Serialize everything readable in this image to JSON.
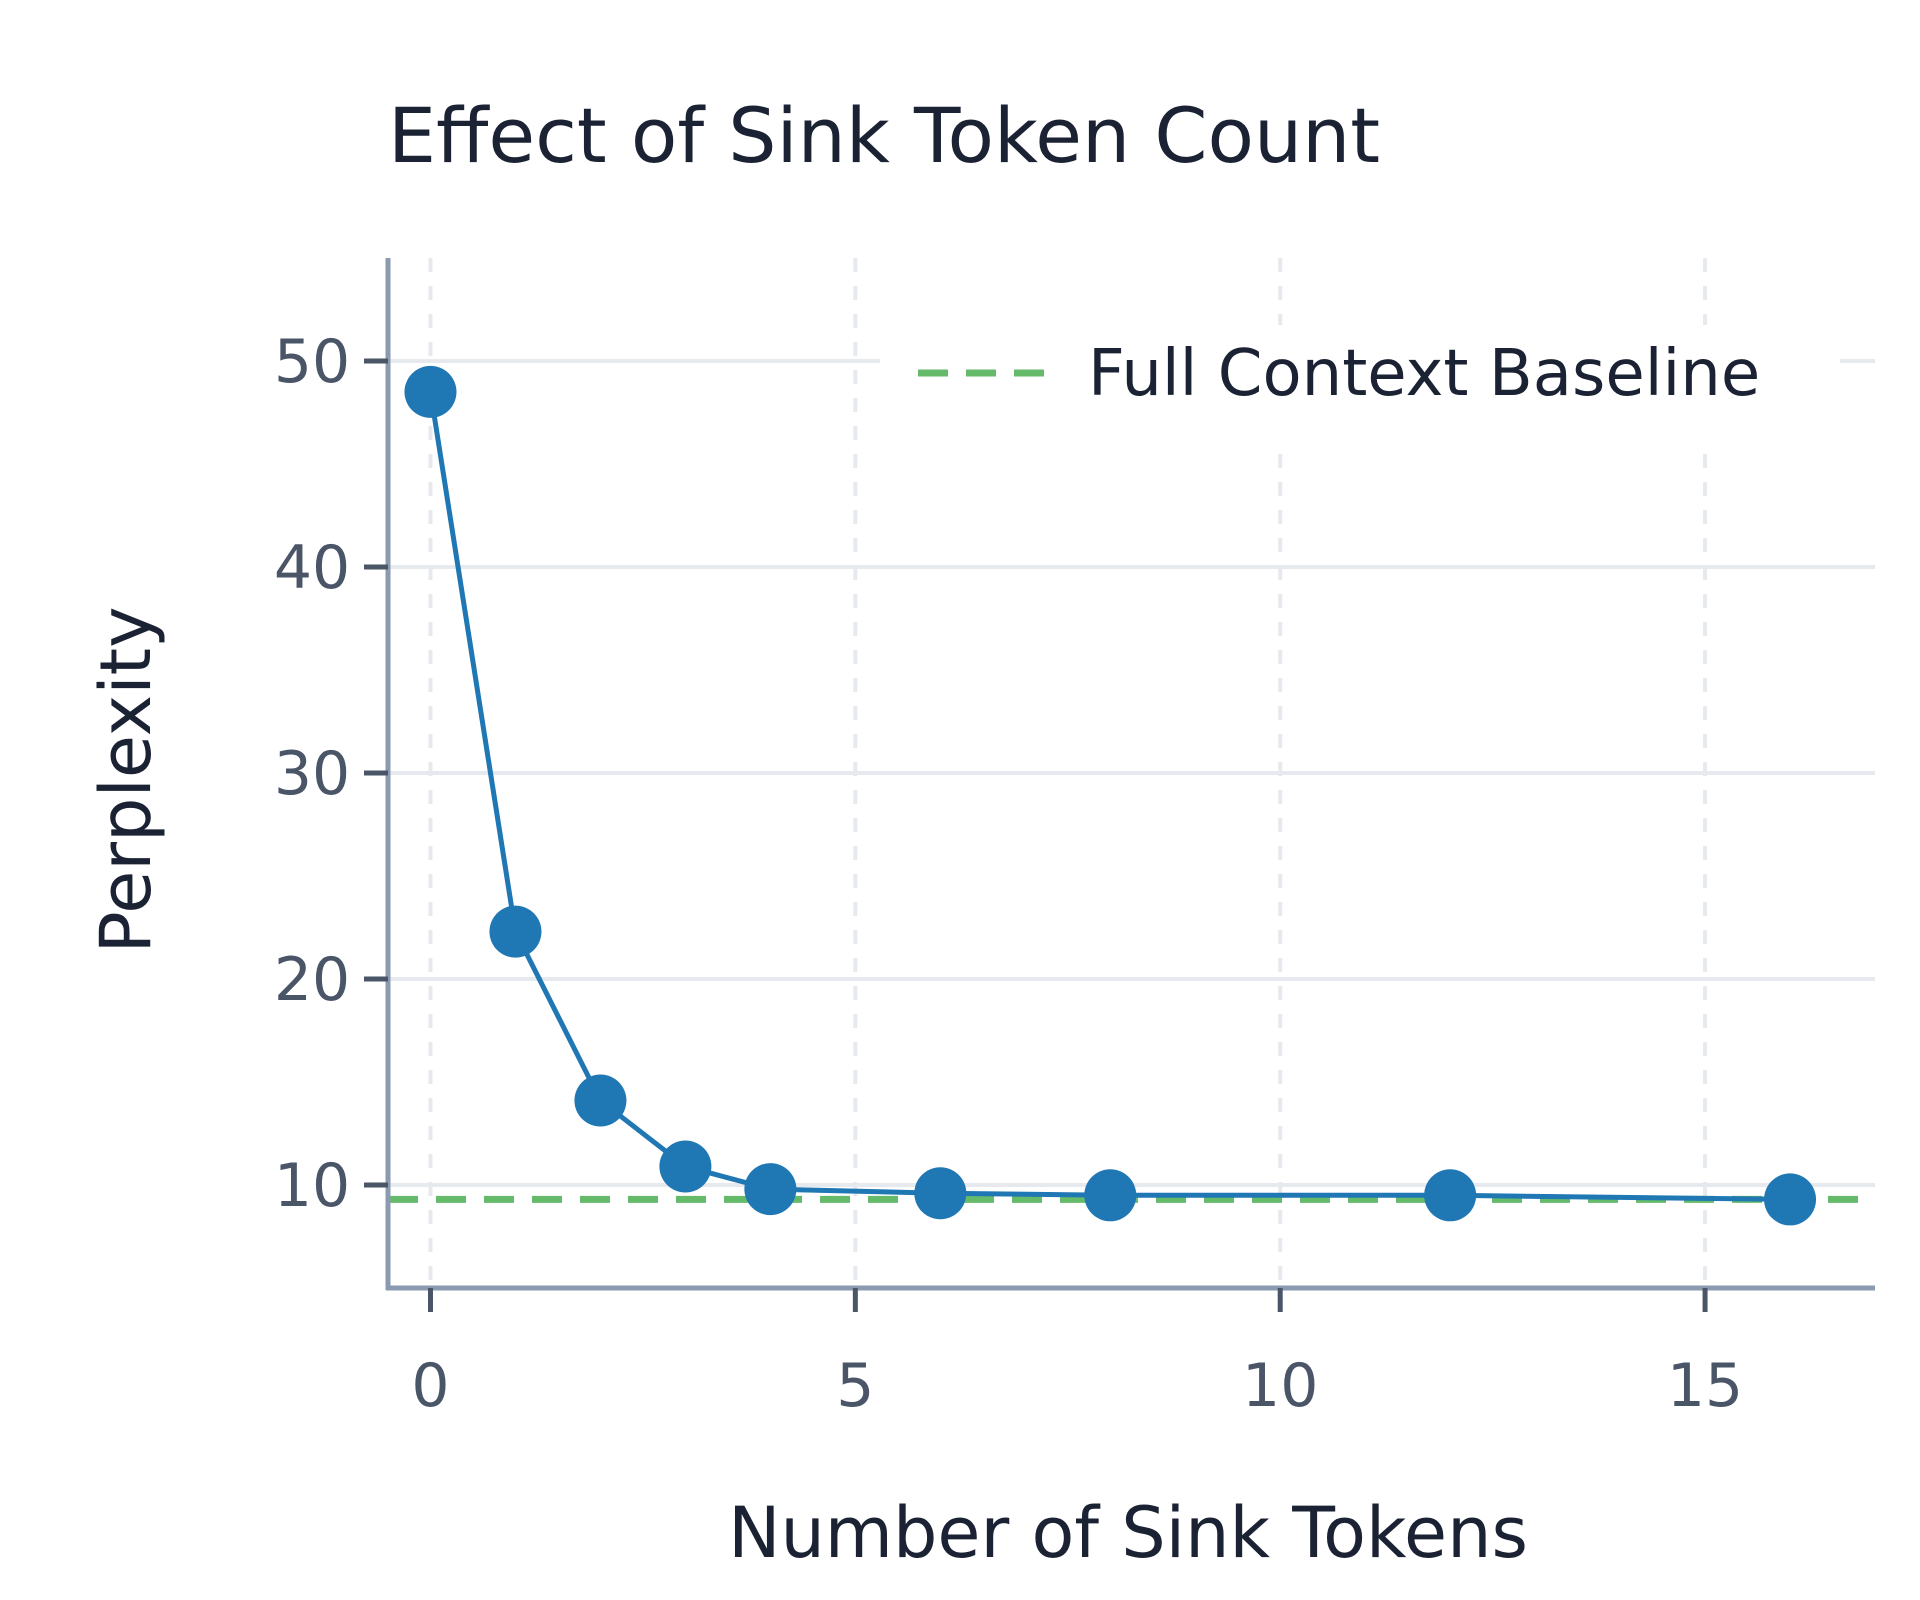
{
  "chart_data": {
    "type": "line",
    "title": "Effect of Sink Token Count",
    "xlabel": "Number of Sink Tokens",
    "ylabel": "Perplexity",
    "xlim": [
      -0.5,
      17
    ],
    "ylim": [
      5,
      55
    ],
    "xticks": [
      0,
      5,
      10,
      15
    ],
    "yticks": [
      10,
      20,
      30,
      40,
      50
    ],
    "grid": true,
    "legend_position": "top-right",
    "series": [
      {
        "x": [
          0,
          1,
          2,
          3,
          4,
          6,
          8,
          12,
          16
        ],
        "y": [
          48.5,
          22.3,
          14.1,
          10.9,
          9.8,
          9.6,
          9.5,
          9.5,
          9.3
        ],
        "color": "#1f77b4",
        "marker": "circle"
      }
    ],
    "reference_lines": [
      {
        "name": "Full Context Baseline",
        "y": 9.3,
        "color": "#66bb6a",
        "style": "dashed"
      }
    ]
  }
}
